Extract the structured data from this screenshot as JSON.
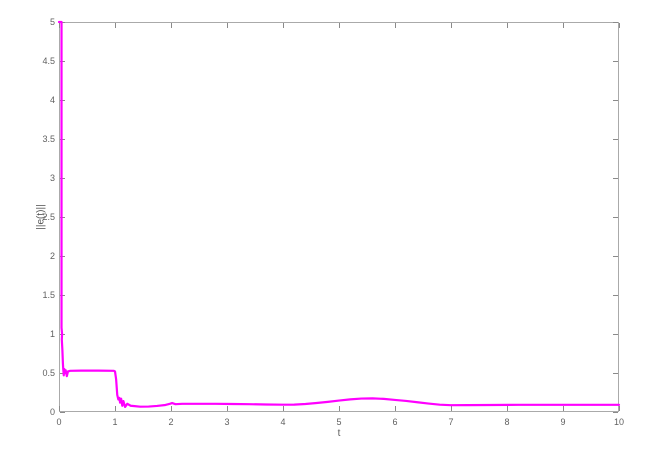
{
  "figure": {
    "background_color": "#ffffff",
    "axis_box_color": "#aaaaaa",
    "tick_mark_color": "#8a8a8a",
    "tick_label_color": "#606060",
    "axis_label_color": "#5a5a5a"
  },
  "chart_data": {
    "type": "line",
    "title": "",
    "xlabel": "t",
    "ylabel": "||e(t)||",
    "xlim": [
      0,
      10
    ],
    "ylim": [
      0,
      5
    ],
    "x_ticks": [
      0,
      1,
      2,
      3,
      4,
      5,
      6,
      7,
      8,
      9,
      10
    ],
    "y_ticks": [
      0,
      0.5,
      1,
      1.5,
      2,
      2.5,
      3,
      3.5,
      4,
      4.5,
      5
    ],
    "grid": false,
    "legend_position": "none",
    "box": true,
    "tick_direction": "in",
    "series": [
      {
        "name": "||e(t)||",
        "color": "#ff00ff",
        "line_width": 2.2,
        "points": [
          [
            0.0,
            5.0
          ],
          [
            0.045,
            5.0
          ],
          [
            0.045,
            1.08
          ],
          [
            0.055,
            1.0
          ],
          [
            0.05,
            0.93
          ],
          [
            0.06,
            0.8
          ],
          [
            0.07,
            0.62
          ],
          [
            0.075,
            0.56
          ],
          [
            0.085,
            0.47
          ],
          [
            0.095,
            0.55
          ],
          [
            0.105,
            0.5
          ],
          [
            0.12,
            0.535
          ],
          [
            0.14,
            0.46
          ],
          [
            0.16,
            0.52
          ],
          [
            0.2,
            0.528
          ],
          [
            0.4,
            0.53
          ],
          [
            0.7,
            0.53
          ],
          [
            0.98,
            0.528
          ],
          [
            1.0,
            0.52
          ],
          [
            1.02,
            0.42
          ],
          [
            1.04,
            0.22
          ],
          [
            1.06,
            0.16
          ],
          [
            1.08,
            0.18
          ],
          [
            1.09,
            0.12
          ],
          [
            1.11,
            0.17
          ],
          [
            1.13,
            0.08
          ],
          [
            1.15,
            0.14
          ],
          [
            1.18,
            0.065
          ],
          [
            1.22,
            0.105
          ],
          [
            1.28,
            0.08
          ],
          [
            1.35,
            0.075
          ],
          [
            1.45,
            0.068
          ],
          [
            1.6,
            0.07
          ],
          [
            1.75,
            0.078
          ],
          [
            1.9,
            0.09
          ],
          [
            1.98,
            0.105
          ],
          [
            2.02,
            0.115
          ],
          [
            2.08,
            0.1
          ],
          [
            2.2,
            0.105
          ],
          [
            2.5,
            0.105
          ],
          [
            2.8,
            0.105
          ],
          [
            3.1,
            0.103
          ],
          [
            3.4,
            0.1
          ],
          [
            3.7,
            0.096
          ],
          [
            4.0,
            0.094
          ],
          [
            4.2,
            0.095
          ],
          [
            4.4,
            0.103
          ],
          [
            4.6,
            0.115
          ],
          [
            4.8,
            0.13
          ],
          [
            5.0,
            0.147
          ],
          [
            5.2,
            0.162
          ],
          [
            5.4,
            0.172
          ],
          [
            5.6,
            0.175
          ],
          [
            5.8,
            0.168
          ],
          [
            6.0,
            0.155
          ],
          [
            6.2,
            0.142
          ],
          [
            6.4,
            0.125
          ],
          [
            6.6,
            0.108
          ],
          [
            6.8,
            0.094
          ],
          [
            7.0,
            0.087
          ],
          [
            7.3,
            0.088
          ],
          [
            7.7,
            0.09
          ],
          [
            8.2,
            0.092
          ],
          [
            8.7,
            0.092
          ],
          [
            9.2,
            0.092
          ],
          [
            9.6,
            0.092
          ],
          [
            10.0,
            0.092
          ]
        ]
      }
    ]
  }
}
